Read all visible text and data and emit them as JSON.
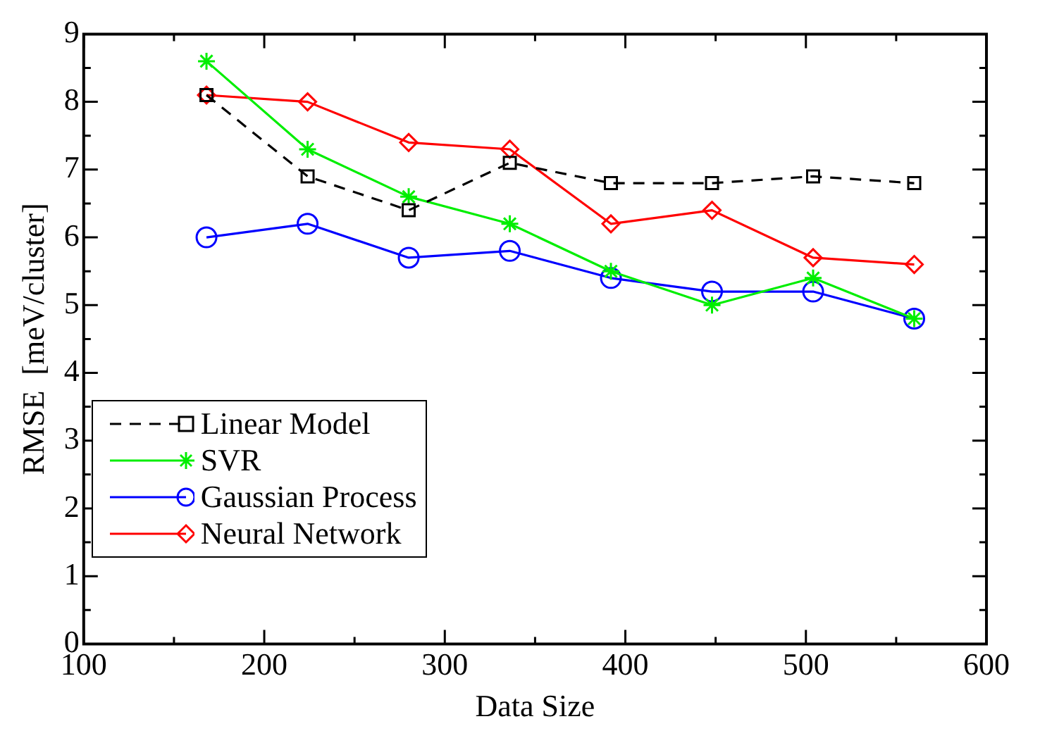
{
  "chart_data": {
    "type": "line",
    "xlabel": "Data Size",
    "ylabel": "RMSE  [meV/cluster]",
    "x": [
      168,
      224,
      280,
      336,
      392,
      448,
      504,
      560
    ],
    "xlim": [
      100,
      600
    ],
    "xticks": [
      100,
      {
        "value": 150,
        "label": null
      },
      200,
      {
        "value": 250,
        "label": null
      },
      300,
      {
        "value": 350,
        "label": null
      },
      400,
      {
        "value": 450,
        "label": null
      },
      500,
      {
        "value": 550,
        "label": null
      },
      600
    ],
    "ylim": [
      0,
      9
    ],
    "yticks": [
      0,
      {
        "value": 0.5,
        "label": null
      },
      1,
      {
        "value": 1.5,
        "label": null
      },
      2,
      {
        "value": 2.5,
        "label": null
      },
      3,
      {
        "value": 3.5,
        "label": null
      },
      4,
      {
        "value": 4.5,
        "label": null
      },
      5,
      {
        "value": 5.5,
        "label": null
      },
      6,
      {
        "value": 6.5,
        "label": null
      },
      7,
      {
        "value": 7.5,
        "label": null
      },
      8,
      {
        "value": 8.5,
        "label": null
      },
      9
    ],
    "grid": false,
    "legend": "bottom left",
    "series": [
      {
        "name": "Linear Model",
        "color": "#000000",
        "marker": "square",
        "line_style": "dashed",
        "values": [
          8.1,
          6.9,
          6.4,
          7.1,
          6.8,
          6.8,
          6.9,
          6.8
        ]
      },
      {
        "name": "SVR",
        "color": "#00ee00",
        "marker": "cross",
        "line_style": "solid",
        "values": [
          8.6,
          7.3,
          6.6,
          6.2,
          5.5,
          5.0,
          5.4,
          4.8
        ]
      },
      {
        "name": "Gaussian Process",
        "color": "#0000ff",
        "marker": "circle",
        "line_style": "solid",
        "values": [
          6.0,
          6.2,
          5.7,
          5.8,
          5.4,
          5.2,
          5.2,
          4.8
        ]
      },
      {
        "name": "Neural Network",
        "color": "#ff0000",
        "marker": "diamond",
        "line_style": "solid",
        "values": [
          8.1,
          8.0,
          7.4,
          7.3,
          6.2,
          6.4,
          5.7,
          5.6
        ]
      }
    ]
  }
}
